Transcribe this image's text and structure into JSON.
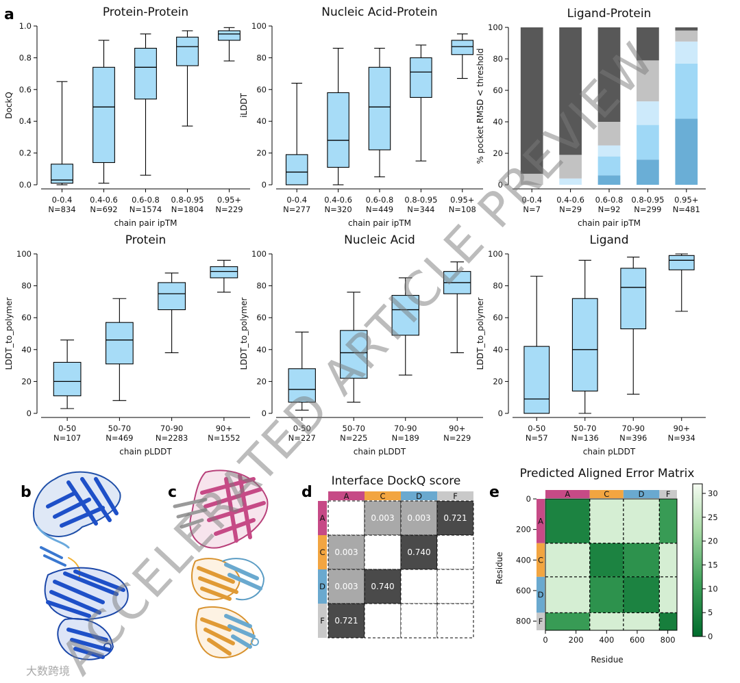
{
  "colors": {
    "box": "#a7dcf7",
    "dark": "#555555",
    "grey": "#bebebe"
  },
  "panel_labels": {
    "a": "a",
    "b": "b",
    "c": "c",
    "d": "d",
    "e": "e"
  },
  "watermark": "ACCELERATED ARTICLE PREVIEW",
  "source_mark": "大数跨境",
  "chart_data": [
    {
      "type": "box",
      "title": "Protein-Protein",
      "ylabel": "DockQ",
      "xlabel": "chain pair ipTM",
      "ylim": [
        0,
        1.0
      ],
      "yticks": [
        "0.0",
        "0.2",
        "0.4",
        "0.6",
        "0.8",
        "1.0"
      ],
      "ytick_values": [
        0,
        0.2,
        0.4,
        0.6,
        0.8,
        1.0
      ],
      "categories": [
        "0-0.4",
        "0.4-0.6",
        "0.6-0.8",
        "0.8-0.95",
        "0.95+"
      ],
      "counts": [
        "N=834",
        "N=692",
        "N=1574",
        "N=1804",
        "N=229"
      ],
      "boxes": [
        {
          "min": 0.0,
          "q1": 0.01,
          "med": 0.03,
          "q3": 0.13,
          "max": 0.65
        },
        {
          "min": 0.01,
          "q1": 0.14,
          "med": 0.49,
          "q3": 0.74,
          "max": 0.91
        },
        {
          "min": 0.06,
          "q1": 0.54,
          "med": 0.74,
          "q3": 0.86,
          "max": 0.95
        },
        {
          "min": 0.37,
          "q1": 0.75,
          "med": 0.87,
          "q3": 0.93,
          "max": 0.97
        },
        {
          "min": 0.78,
          "q1": 0.91,
          "med": 0.95,
          "q3": 0.97,
          "max": 0.99
        }
      ]
    },
    {
      "type": "box",
      "title": "Nucleic Acid-Protein",
      "ylabel": "iLDDT",
      "xlabel": "chain pair ipTM",
      "ylim": [
        0,
        100
      ],
      "yticks": [
        "0",
        "20",
        "40",
        "60",
        "80",
        "100"
      ],
      "ytick_values": [
        0,
        20,
        40,
        60,
        80,
        100
      ],
      "categories": [
        "0-0.4",
        "0.4-0.6",
        "0.6-0.8",
        "0.8-0.95",
        "0.95+"
      ],
      "counts": [
        "N=277",
        "N=320",
        "N=449",
        "N=344",
        "N=108"
      ],
      "boxes": [
        {
          "min": 0,
          "q1": 0,
          "med": 8,
          "q3": 19,
          "max": 64
        },
        {
          "min": 0,
          "q1": 11,
          "med": 28,
          "q3": 58,
          "max": 86
        },
        {
          "min": 5,
          "q1": 22,
          "med": 49,
          "q3": 74,
          "max": 86
        },
        {
          "min": 15,
          "q1": 55,
          "med": 71,
          "q3": 80,
          "max": 88
        },
        {
          "min": 67,
          "q1": 82,
          "med": 87,
          "q3": 91,
          "max": 95
        }
      ]
    },
    {
      "type": "stacked_bar",
      "title": "Ligand-Protein",
      "ylabel": "% pocket RMSD < threshold",
      "xlabel": "chain pair ipTM",
      "ylim": [
        0,
        100
      ],
      "yticks": [
        "0",
        "20",
        "40",
        "60",
        "80",
        "100"
      ],
      "ytick_values": [
        0,
        20,
        40,
        60,
        80,
        100
      ],
      "categories": [
        "0-0.4",
        "0.4-0.6",
        "0.6-0.8",
        "0.8-0.95",
        "0.95+"
      ],
      "counts": [
        "N=7",
        "N=29",
        "N=92",
        "N=299",
        "N=481"
      ],
      "segment_colors": [
        "#6aaed6",
        "#9fd8f6",
        "#cdeafb",
        "#c2c2c2",
        "#585858"
      ],
      "stacks": [
        [
          0,
          0,
          0,
          7,
          93
        ],
        [
          0,
          0,
          4,
          15,
          81
        ],
        [
          6,
          12,
          7,
          15,
          60
        ],
        [
          16,
          22,
          15,
          26,
          21
        ],
        [
          42,
          35,
          14,
          7,
          2
        ]
      ]
    },
    {
      "type": "box",
      "title": "Protein",
      "ylabel": "LDDT_to_polymer",
      "xlabel": "chain pLDDT",
      "ylim": [
        0,
        100
      ],
      "yticks": [
        "0",
        "20",
        "40",
        "60",
        "80",
        "100"
      ],
      "ytick_values": [
        0,
        20,
        40,
        60,
        80,
        100
      ],
      "categories": [
        "0-50",
        "50-70",
        "70-90",
        "90+"
      ],
      "counts": [
        "N=107",
        "N=469",
        "N=2283",
        "N=1552"
      ],
      "boxes": [
        {
          "min": 3,
          "q1": 11,
          "med": 20,
          "q3": 32,
          "max": 46
        },
        {
          "min": 8,
          "q1": 31,
          "med": 46,
          "q3": 57,
          "max": 72
        },
        {
          "min": 38,
          "q1": 65,
          "med": 75,
          "q3": 82,
          "max": 88
        },
        {
          "min": 76,
          "q1": 85,
          "med": 89,
          "q3": 92,
          "max": 96
        }
      ]
    },
    {
      "type": "box",
      "title": "Nucleic Acid",
      "ylabel": "LDDT_to_polymer",
      "xlabel": "chain pLDDT",
      "ylim": [
        0,
        100
      ],
      "yticks": [
        "0",
        "20",
        "40",
        "60",
        "80",
        "100"
      ],
      "ytick_values": [
        0,
        20,
        40,
        60,
        80,
        100
      ],
      "categories": [
        "0-50",
        "50-70",
        "70-90",
        "90+"
      ],
      "counts": [
        "N=227",
        "N=225",
        "N=189",
        "N=229"
      ],
      "boxes": [
        {
          "min": 2,
          "q1": 7,
          "med": 15,
          "q3": 28,
          "max": 51
        },
        {
          "min": 7,
          "q1": 22,
          "med": 38,
          "q3": 52,
          "max": 76
        },
        {
          "min": 24,
          "q1": 49,
          "med": 65,
          "q3": 74,
          "max": 85
        },
        {
          "min": 38,
          "q1": 75,
          "med": 82,
          "q3": 89,
          "max": 95
        }
      ]
    },
    {
      "type": "box",
      "title": "Ligand",
      "ylabel": "LDDT_to_polymer",
      "xlabel": "chain pLDDT",
      "ylim": [
        0,
        100
      ],
      "yticks": [
        "0",
        "20",
        "40",
        "60",
        "80",
        "100"
      ],
      "ytick_values": [
        0,
        20,
        40,
        60,
        80,
        100
      ],
      "categories": [
        "0-50",
        "50-70",
        "70-90",
        "90+"
      ],
      "counts": [
        "N=57",
        "N=136",
        "N=396",
        "N=934"
      ],
      "boxes": [
        {
          "min": 0,
          "q1": 0,
          "med": 9,
          "q3": 42,
          "max": 86
        },
        {
          "min": 0,
          "q1": 14,
          "med": 40,
          "q3": 72,
          "max": 96
        },
        {
          "min": 12,
          "q1": 53,
          "med": 79,
          "q3": 91,
          "max": 98
        },
        {
          "min": 64,
          "q1": 90,
          "med": 96,
          "q3": 99,
          "max": 100
        }
      ]
    },
    {
      "type": "table",
      "title": "Interface DockQ score",
      "chains": [
        "A",
        "C",
        "D",
        "F"
      ],
      "chain_colors": [
        "#c64a86",
        "#f2a541",
        "#6aa9cf",
        "#c9c9c9"
      ],
      "cells": [
        [
          "",
          "0.003",
          "0.003",
          "0.721"
        ],
        [
          "0.003",
          "",
          "0.740",
          ""
        ],
        [
          "0.003",
          "0.740",
          "",
          ""
        ],
        [
          "0.721",
          "",
          "",
          ""
        ]
      ]
    },
    {
      "type": "heatmap",
      "title": "Predicted Aligned Error Matrix",
      "xlabel": "Residue",
      "ylabel": "Residue",
      "xticks": [
        "0",
        "200",
        "400",
        "600",
        "800"
      ],
      "tick_values": [
        0,
        200,
        400,
        600,
        800
      ],
      "yticks": [
        "0",
        "200",
        "400",
        "600",
        "800"
      ],
      "n_residues": 860,
      "chains": [
        "A",
        "C",
        "D",
        "F"
      ],
      "chain_ranges": [
        [
          0,
          290
        ],
        [
          290,
          510
        ],
        [
          510,
          745
        ],
        [
          745,
          860
        ]
      ],
      "chain_colors": [
        "#c64a86",
        "#f2a541",
        "#6aa9cf",
        "#c9c9c9"
      ],
      "colorbar_ticks": [
        "0",
        "5",
        "10",
        "15",
        "20",
        "25",
        "30"
      ],
      "colorbar_values": [
        0,
        5,
        10,
        15,
        20,
        25,
        30
      ],
      "colorbar_range": [
        0,
        32
      ],
      "block_pae": [
        [
          5,
          28,
          28,
          10
        ],
        [
          28,
          5,
          8,
          28
        ],
        [
          28,
          8,
          5,
          28
        ],
        [
          10,
          28,
          28,
          4
        ]
      ]
    }
  ]
}
